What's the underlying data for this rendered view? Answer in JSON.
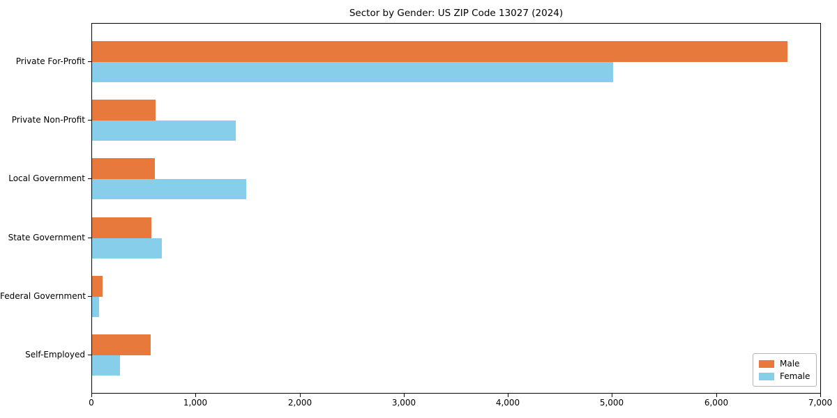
{
  "title": "Sector by Gender: US ZIP Code 13027 (2024)",
  "legend": {
    "items": [
      {
        "label": "Male",
        "color": "#E8793D"
      },
      {
        "label": "Female",
        "color": "#87CEEB"
      }
    ],
    "position": "lower right"
  },
  "chart_data": {
    "type": "bar",
    "orientation": "horizontal",
    "title": "Sector by Gender: US ZIP Code 13027 (2024)",
    "categories": [
      "Private For-Profit",
      "Private Non-Profit",
      "Local Government",
      "State Government",
      "Federal Government",
      "Self-Employed"
    ],
    "series": [
      {
        "name": "Male",
        "color": "#E8793D",
        "values": [
          6670,
          610,
          600,
          570,
          100,
          560
        ]
      },
      {
        "name": "Female",
        "color": "#87CEEB",
        "values": [
          5000,
          1380,
          1480,
          670,
          70,
          270
        ]
      }
    ],
    "xlabel": "",
    "ylabel": "",
    "xlim": [
      0,
      7000
    ],
    "xticks": [
      0,
      1000,
      2000,
      3000,
      4000,
      5000,
      6000,
      7000
    ],
    "xtick_labels": [
      "0",
      "1,000",
      "2,000",
      "3,000",
      "4,000",
      "5,000",
      "6,000",
      "7,000"
    ],
    "grid": false,
    "legend_position": "lower right"
  }
}
